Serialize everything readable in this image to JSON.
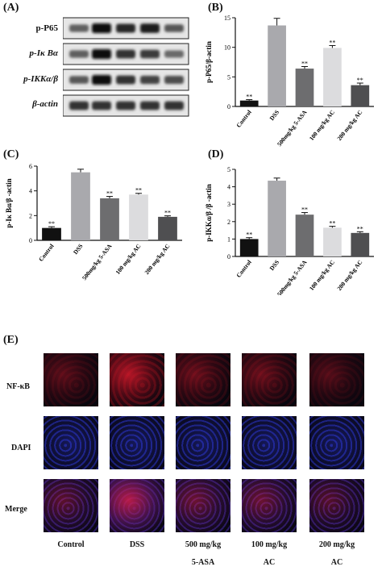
{
  "panels": {
    "A": "(A)",
    "B": "(B)",
    "C": "(C)",
    "D": "(D)",
    "E": "(E)"
  },
  "blot": {
    "rows": [
      "p-P65",
      "p-Iκ Bα",
      "p-IKKα/β",
      "β-actin"
    ],
    "intensities": [
      [
        0.55,
        1.0,
        0.85,
        0.9,
        0.6
      ],
      [
        0.55,
        1.0,
        0.8,
        0.75,
        0.5
      ],
      [
        0.6,
        1.0,
        0.8,
        0.7,
        0.65
      ],
      [
        0.8,
        0.8,
        0.8,
        0.8,
        0.8
      ]
    ]
  },
  "chart_data": [
    {
      "type": "bar",
      "panel": "B",
      "categories": [
        "Control",
        "DSS",
        "500mg/kg 5-ASA",
        "100 mg/kg AC",
        "200 mg/kg AC"
      ],
      "values": [
        1.0,
        13.7,
        6.4,
        9.9,
        3.6
      ],
      "errors": [
        0.15,
        1.2,
        0.35,
        0.4,
        0.35
      ],
      "significance": [
        "**",
        "",
        "**",
        "**",
        "**"
      ],
      "ylabel": "p-P65/β-actin",
      "ylim": [
        0,
        15
      ],
      "yticks": [
        0,
        5,
        10,
        15
      ],
      "colors": [
        "#111111",
        "#a9a9ad",
        "#6d6d6f",
        "#dcdcde",
        "#4f4f51"
      ]
    },
    {
      "type": "bar",
      "panel": "C",
      "categories": [
        "Control",
        "DSS",
        "500mg/kg 5-ASA",
        "100 mg/kg AC",
        "200 mg/kg AC"
      ],
      "values": [
        1.0,
        5.5,
        3.4,
        3.7,
        1.9
      ],
      "errors": [
        0.1,
        0.25,
        0.15,
        0.1,
        0.08
      ],
      "significance": [
        "**",
        "",
        "**",
        "**",
        "**"
      ],
      "ylabel": "p-Iκ Bα/β -actin",
      "ylim": [
        0,
        6
      ],
      "yticks": [
        0,
        2,
        4,
        6
      ],
      "colors": [
        "#111111",
        "#a9a9ad",
        "#6d6d6f",
        "#dcdcde",
        "#4f4f51"
      ]
    },
    {
      "type": "bar",
      "panel": "D",
      "categories": [
        "Control",
        "DSS",
        "500mg/kg 5-ASA",
        "100 mg/kg AC",
        "200 mg/kg AC"
      ],
      "values": [
        1.0,
        4.35,
        2.4,
        1.65,
        1.35
      ],
      "errors": [
        0.08,
        0.15,
        0.12,
        0.08,
        0.07
      ],
      "significance": [
        "**",
        "",
        "**",
        "**",
        "**"
      ],
      "ylabel": "p-IKKα/β /β -actin",
      "ylim": [
        0,
        5
      ],
      "yticks": [
        0,
        1,
        2,
        3,
        4,
        5
      ],
      "colors": [
        "#111111",
        "#a9a9ad",
        "#6d6d6f",
        "#dcdcde",
        "#4f4f51"
      ]
    }
  ],
  "fluorescence": {
    "rows": [
      "NF-κB",
      "DAPI",
      "Merge"
    ],
    "columns": [
      {
        "line1": "Control",
        "line2": ""
      },
      {
        "line1": "DSS",
        "line2": ""
      },
      {
        "line1": "500 mg/kg",
        "line2": "5-ASA"
      },
      {
        "line1": "100 mg/kg",
        "line2": "AC"
      },
      {
        "line1": "200 mg/kg",
        "line2": "AC"
      }
    ],
    "red_intensity": [
      0.35,
      0.95,
      0.45,
      0.45,
      0.3
    ],
    "colors": {
      "red": "#d0182a",
      "blue": "#2a34c8",
      "background": "#08060e"
    }
  }
}
